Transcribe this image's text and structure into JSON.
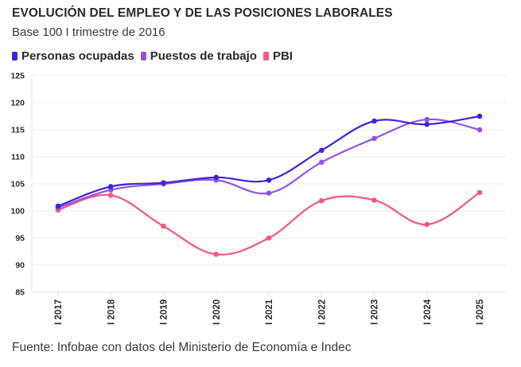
{
  "chart_data": {
    "type": "line",
    "title": "EVOLUCIÓN DEL EMPLEO Y DE LAS POSICIONES LABORALES",
    "subtitle": "Base 100 I trimestre de 2016",
    "xlabel": "",
    "ylabel": "",
    "categories": [
      "I 2017",
      "I 2018",
      "I 2019",
      "I 2020",
      "I 2021",
      "I 2022",
      "I 2023",
      "I 2024",
      "I 2025"
    ],
    "ylim": [
      85,
      125
    ],
    "yticks": [
      85,
      90,
      95,
      100,
      105,
      110,
      115,
      120,
      125
    ],
    "grid": true,
    "legend_position": "top-left",
    "series": [
      {
        "name": "Personas ocupadas",
        "color": "#3f22dd",
        "values": [
          100.9,
          104.5,
          105.2,
          106.2,
          105.7,
          111.2,
          116.6,
          116.0,
          117.5
        ]
      },
      {
        "name": "Puestos de trabajo",
        "color": "#9254e0",
        "values": [
          100.6,
          103.9,
          105.0,
          105.7,
          103.3,
          109.0,
          113.4,
          116.9,
          115.0
        ]
      },
      {
        "name": "PBI",
        "color": "#f7567e",
        "values": [
          100.2,
          102.9,
          97.2,
          92.0,
          95.0,
          101.9,
          102.0,
          97.5,
          103.4
        ]
      }
    ],
    "source": "Fuente: Infobae con datos del Ministerio de Economía e Indec"
  }
}
